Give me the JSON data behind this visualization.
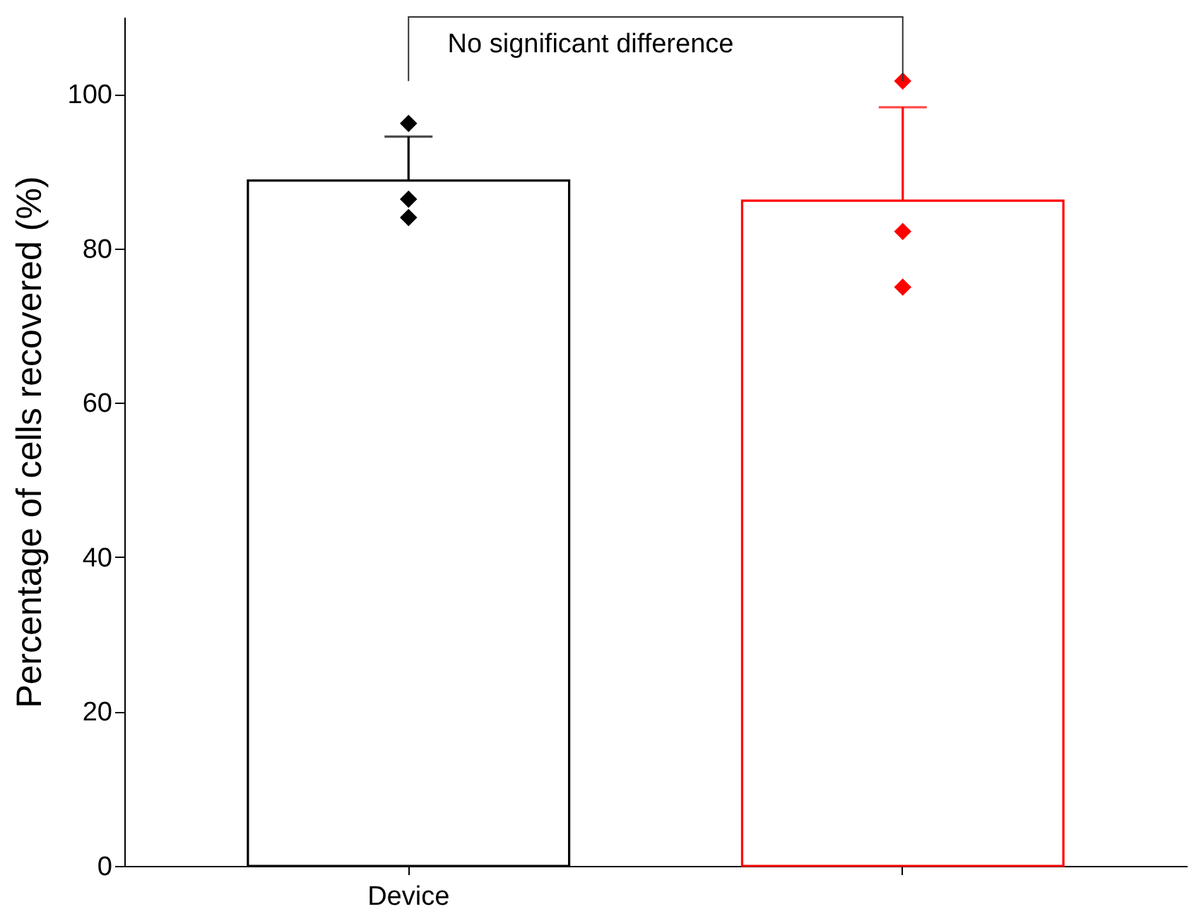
{
  "chart_data": {
    "type": "bar",
    "categories": [
      "Device",
      null
    ],
    "ylabel": "Percentage of cells recovered (%)",
    "ylim": [
      0,
      110
    ],
    "yticks": [
      0,
      20,
      40,
      60,
      80,
      100
    ],
    "grid": false,
    "series": [
      {
        "colors": [
          "#000000",
          "#ff0000"
        ],
        "values": [
          88.8,
          86.2
        ],
        "errors": [
          [
            88.8,
            94.5
          ],
          [
            86.2,
            98.3
          ]
        ]
      },
      {
        "type": "scatter",
        "marker": "diamond",
        "x": [
          "Device",
          "Device",
          "Device",
          null,
          null,
          null
        ],
        "colors": [
          "#000000",
          "#000000",
          "#000000",
          "#ff0000",
          "#ff0000",
          "#ff0000"
        ],
        "values": [
          96.2,
          86.4,
          84.0,
          101.7,
          82.2,
          75.0
        ]
      }
    ],
    "annotations": [
      "No significant difference"
    ]
  }
}
